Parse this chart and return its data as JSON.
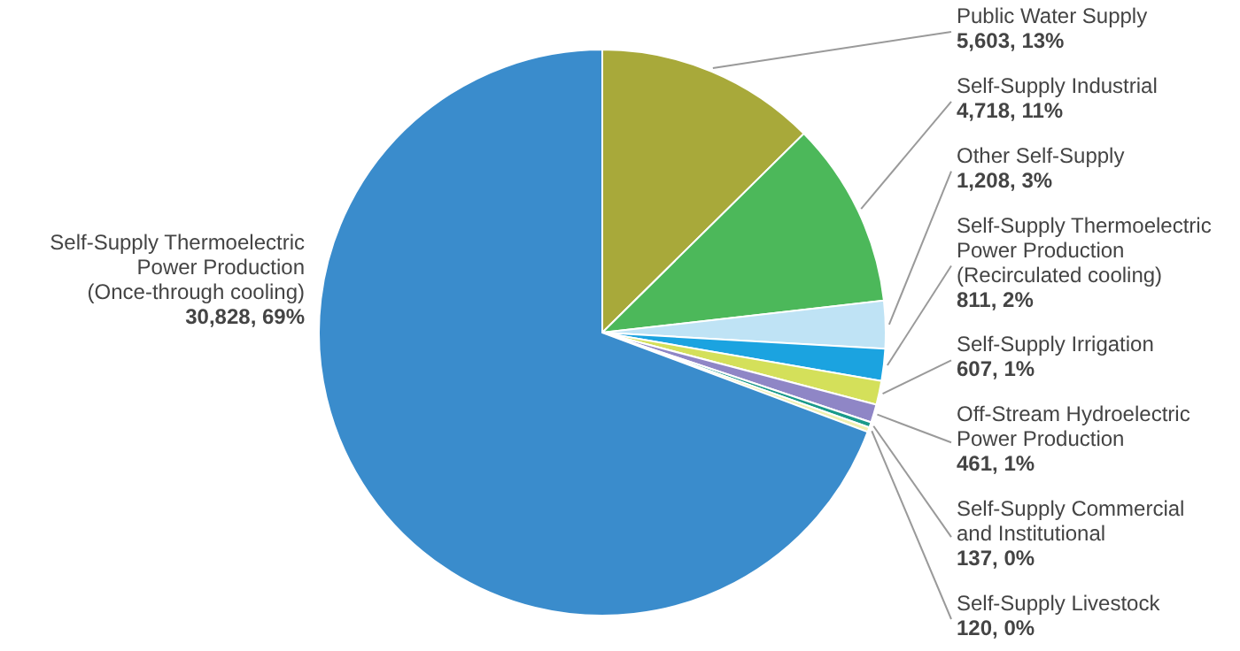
{
  "chart_data": {
    "type": "pie",
    "categories": [
      "Public Water Supply",
      "Self-Supply Industrial",
      "Other Self-Supply",
      "Self-Supply Thermoelectric Power Production (Recirculated cooling)",
      "Self-Supply Irrigation",
      "Off-Stream Hydroelectric Power Production",
      "Self-Supply Commercial and Institutional",
      "Self-Supply Livestock",
      "Self-Supply Thermoelectric Power Production (Once-through cooling)"
    ],
    "values": [
      5603,
      4718,
      1208,
      811,
      607,
      461,
      137,
      120,
      30828
    ],
    "value_labels": [
      "5,603, 13%",
      "4,718, 11%",
      "1,208, 3%",
      "811, 2%",
      "607, 1%",
      "461, 1%",
      "137, 0%",
      "120, 0%",
      "30,828, 69%"
    ],
    "colors": [
      "#a8a93a",
      "#4cb85a",
      "#bfe3f5",
      "#1ba3e0",
      "#d4e05a",
      "#8f86c6",
      "#1a9a8a",
      "#f0f0b0",
      "#3a8ccc"
    ]
  }
}
